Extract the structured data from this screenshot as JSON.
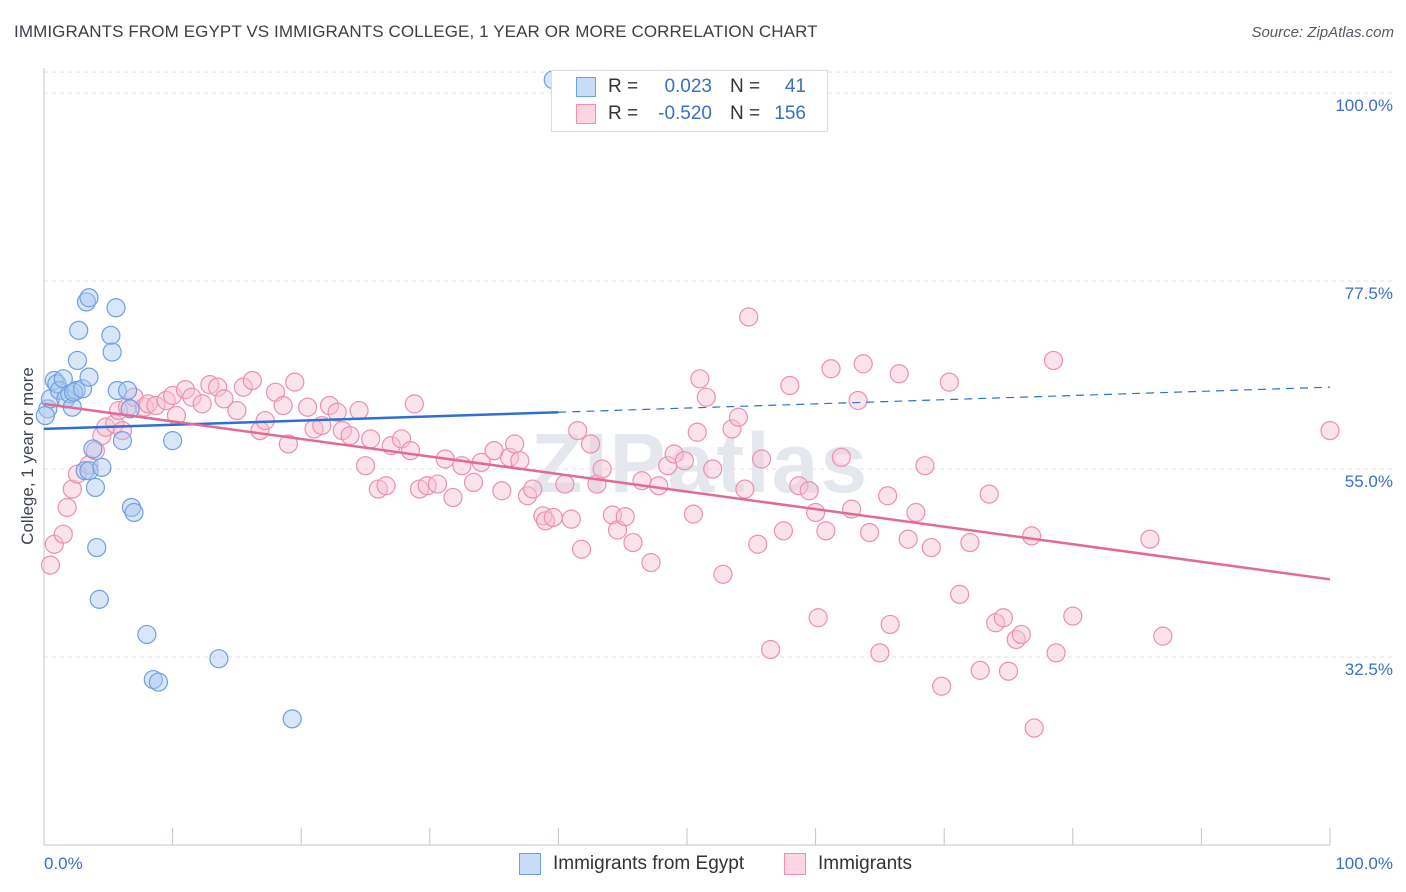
{
  "title": "IMMIGRANTS FROM EGYPT VS IMMIGRANTS COLLEGE, 1 YEAR OR MORE CORRELATION CHART",
  "source": "Source: ZipAtlas.com",
  "watermark": "ZIPatlas",
  "legend_top": [
    {
      "r_label": "R =",
      "r_value": "0.023",
      "n_label": "N =",
      "n_value": "41",
      "color": "#a9c8ef",
      "border": "#6f9fe0"
    },
    {
      "r_label": "R =",
      "r_value": "-0.520",
      "n_label": "N =",
      "n_value": "156",
      "color": "#f7c1d3",
      "border": "#ec8fb0"
    }
  ],
  "legend_bottom": [
    {
      "label": "Immigrants from Egypt",
      "color": "#a9c8ef",
      "border": "#6f9fe0"
    },
    {
      "label": "Immigrants",
      "color": "#f7c1d3",
      "border": "#ec8fb0"
    }
  ],
  "chart_data": {
    "type": "scatter",
    "title": "IMMIGRANTS FROM EGYPT VS IMMIGRANTS COLLEGE, 1 YEAR OR MORE CORRELATION CHART",
    "xlabel": "",
    "ylabel": "College, 1 year or more",
    "xlim": [
      0,
      100
    ],
    "ylim": [
      10,
      103
    ],
    "x_tick_labels": [
      "0.0%",
      "100.0%"
    ],
    "y_ticks": [
      32.5,
      55.0,
      77.5,
      100.0
    ],
    "y_tick_labels": [
      "32.5%",
      "55.0%",
      "77.5%",
      "100.0%"
    ],
    "grid": true,
    "series": [
      {
        "name": "Immigrants from Egypt",
        "color": "#a9c8ef",
        "edge": "#6f9fe0",
        "line_color": "#2f6fd0",
        "trend": {
          "x0": 0,
          "y0": 59.8,
          "x1": 40,
          "y1": 61.8,
          "dash_x1": 100,
          "dash_y1": 64.8
        },
        "points": [
          [
            0.3,
            62.2
          ],
          [
            0.5,
            63.4
          ],
          [
            0.8,
            65.6
          ],
          [
            1,
            65.2
          ],
          [
            1.2,
            64.4
          ],
          [
            1.5,
            65.8
          ],
          [
            1.7,
            63.4
          ],
          [
            2,
            64
          ],
          [
            2.2,
            62.4
          ],
          [
            2.5,
            64.4
          ],
          [
            2.3,
            64.2
          ],
          [
            2.6,
            68
          ],
          [
            2.7,
            71.6
          ],
          [
            3,
            64.6
          ],
          [
            3.2,
            54.8
          ],
          [
            3.3,
            75
          ],
          [
            3.5,
            75.5
          ],
          [
            3.5,
            54.8
          ],
          [
            3.5,
            66
          ],
          [
            3.8,
            57.4
          ],
          [
            4,
            52.8
          ],
          [
            4.1,
            45.6
          ],
          [
            4.3,
            39.4
          ],
          [
            4.5,
            55.2
          ],
          [
            5.2,
            71
          ],
          [
            5.3,
            69
          ],
          [
            5.6,
            74.3
          ],
          [
            5.7,
            64.4
          ],
          [
            6.1,
            58.4
          ],
          [
            6.5,
            64.4
          ],
          [
            6.7,
            62.2
          ],
          [
            6.8,
            50.4
          ],
          [
            7,
            49.8
          ],
          [
            8,
            35.2
          ],
          [
            8.5,
            29.8
          ],
          [
            8.9,
            29.5
          ],
          [
            10,
            58.4
          ],
          [
            13.6,
            32.3
          ],
          [
            19.3,
            25.1
          ],
          [
            39.6,
            101.6
          ],
          [
            0.1,
            61.4
          ]
        ]
      },
      {
        "name": "Immigrants",
        "color": "#f7c1d3",
        "edge": "#ec8fb0",
        "line_color": "#e26a98",
        "trend": {
          "x0": 0,
          "y0": 62.8,
          "x1": 100,
          "y1": 41.8
        },
        "points": [
          [
            0.5,
            43.5
          ],
          [
            0.8,
            46
          ],
          [
            1.5,
            47.2
          ],
          [
            1.8,
            50.4
          ],
          [
            2.2,
            52.6
          ],
          [
            2.6,
            54.4
          ],
          [
            3.5,
            55.5
          ],
          [
            4,
            57.2
          ],
          [
            4.5,
            59
          ],
          [
            4.8,
            60
          ],
          [
            5.5,
            60.4
          ],
          [
            5.8,
            62
          ],
          [
            6.1,
            59.6
          ],
          [
            6.5,
            62.4
          ],
          [
            7,
            63.6
          ],
          [
            7.8,
            62.4
          ],
          [
            8.1,
            62.8
          ],
          [
            8.7,
            62.6
          ],
          [
            9.5,
            63.2
          ],
          [
            10,
            63.8
          ],
          [
            10.3,
            61.4
          ],
          [
            11,
            64.5
          ],
          [
            11.5,
            63.6
          ],
          [
            12.3,
            62.8
          ],
          [
            12.9,
            65.1
          ],
          [
            13.5,
            64.8
          ],
          [
            14,
            63.4
          ],
          [
            15,
            62
          ],
          [
            15.5,
            64.8
          ],
          [
            16.2,
            65.6
          ],
          [
            16.8,
            59.6
          ],
          [
            17.2,
            60.8
          ],
          [
            18,
            64.2
          ],
          [
            18.6,
            62.6
          ],
          [
            19,
            58
          ],
          [
            19.5,
            65.4
          ],
          [
            20.5,
            62.4
          ],
          [
            21,
            59.8
          ],
          [
            21.6,
            60.2
          ],
          [
            22.2,
            62.6
          ],
          [
            22.8,
            61.8
          ],
          [
            23.2,
            59.6
          ],
          [
            23.8,
            59
          ],
          [
            24.5,
            62
          ],
          [
            25,
            55.4
          ],
          [
            25.4,
            58.6
          ],
          [
            26,
            52.6
          ],
          [
            26.6,
            53
          ],
          [
            27,
            57.8
          ],
          [
            27.8,
            58.6
          ],
          [
            28.5,
            57.2
          ],
          [
            28.8,
            62.8
          ],
          [
            29.2,
            52.6
          ],
          [
            29.8,
            53
          ],
          [
            30.6,
            53.2
          ],
          [
            31.2,
            56.2
          ],
          [
            31.8,
            51.6
          ],
          [
            32.5,
            55.4
          ],
          [
            33.4,
            53.4
          ],
          [
            34,
            55.8
          ],
          [
            35,
            57.2
          ],
          [
            35.6,
            52.4
          ],
          [
            36.2,
            56.4
          ],
          [
            36.6,
            58
          ],
          [
            37,
            56
          ],
          [
            37.6,
            51.8
          ],
          [
            38,
            52.6
          ],
          [
            38.8,
            49.4
          ],
          [
            39,
            48.8
          ],
          [
            39.6,
            49.2
          ],
          [
            40.5,
            53.2
          ],
          [
            41,
            49
          ],
          [
            41.5,
            59.6
          ],
          [
            41.8,
            45.4
          ],
          [
            42.5,
            58
          ],
          [
            43,
            53.2
          ],
          [
            43.4,
            55
          ],
          [
            44.2,
            49.5
          ],
          [
            44.6,
            47.7
          ],
          [
            45.2,
            49.3
          ],
          [
            45.8,
            46.2
          ],
          [
            46.5,
            53.6
          ],
          [
            47.2,
            43.8
          ],
          [
            47.8,
            53
          ],
          [
            48.5,
            55.4
          ],
          [
            49,
            56.8
          ],
          [
            49.8,
            56
          ],
          [
            50.5,
            49.6
          ],
          [
            50.8,
            59.4
          ],
          [
            51,
            65.8
          ],
          [
            51.5,
            63.6
          ],
          [
            52,
            55
          ],
          [
            52.8,
            42.4
          ],
          [
            53.5,
            59.8
          ],
          [
            54,
            61.2
          ],
          [
            54.5,
            52.6
          ],
          [
            54.8,
            73.2
          ],
          [
            55.5,
            46
          ],
          [
            55.8,
            56.2
          ],
          [
            56.5,
            33.4
          ],
          [
            57.5,
            47.6
          ],
          [
            58,
            65
          ],
          [
            58.7,
            53
          ],
          [
            59.5,
            52.4
          ],
          [
            60,
            49.8
          ],
          [
            60.2,
            37.2
          ],
          [
            60.8,
            47.6
          ],
          [
            61.2,
            67
          ],
          [
            62,
            56.4
          ],
          [
            62.8,
            50.2
          ],
          [
            63.3,
            63.2
          ],
          [
            63.7,
            67.6
          ],
          [
            64.2,
            47.4
          ],
          [
            65,
            33
          ],
          [
            65.6,
            51.8
          ],
          [
            65.8,
            36.4
          ],
          [
            66.5,
            66.4
          ],
          [
            67.2,
            46.6
          ],
          [
            67.8,
            49.8
          ],
          [
            68.5,
            55.4
          ],
          [
            69,
            45.6
          ],
          [
            69.8,
            29
          ],
          [
            70.4,
            65.4
          ],
          [
            71.2,
            40
          ],
          [
            72,
            46.2
          ],
          [
            72.8,
            30.9
          ],
          [
            73.5,
            52
          ],
          [
            74,
            36.6
          ],
          [
            74.6,
            37.2
          ],
          [
            75,
            30.8
          ],
          [
            75.6,
            34.6
          ],
          [
            76,
            35.2
          ],
          [
            76.8,
            47
          ],
          [
            77,
            24
          ],
          [
            78.5,
            68
          ],
          [
            78.7,
            33
          ],
          [
            80,
            37.4
          ],
          [
            86,
            46.6
          ],
          [
            87,
            35
          ],
          [
            100,
            59.6
          ]
        ]
      }
    ]
  }
}
